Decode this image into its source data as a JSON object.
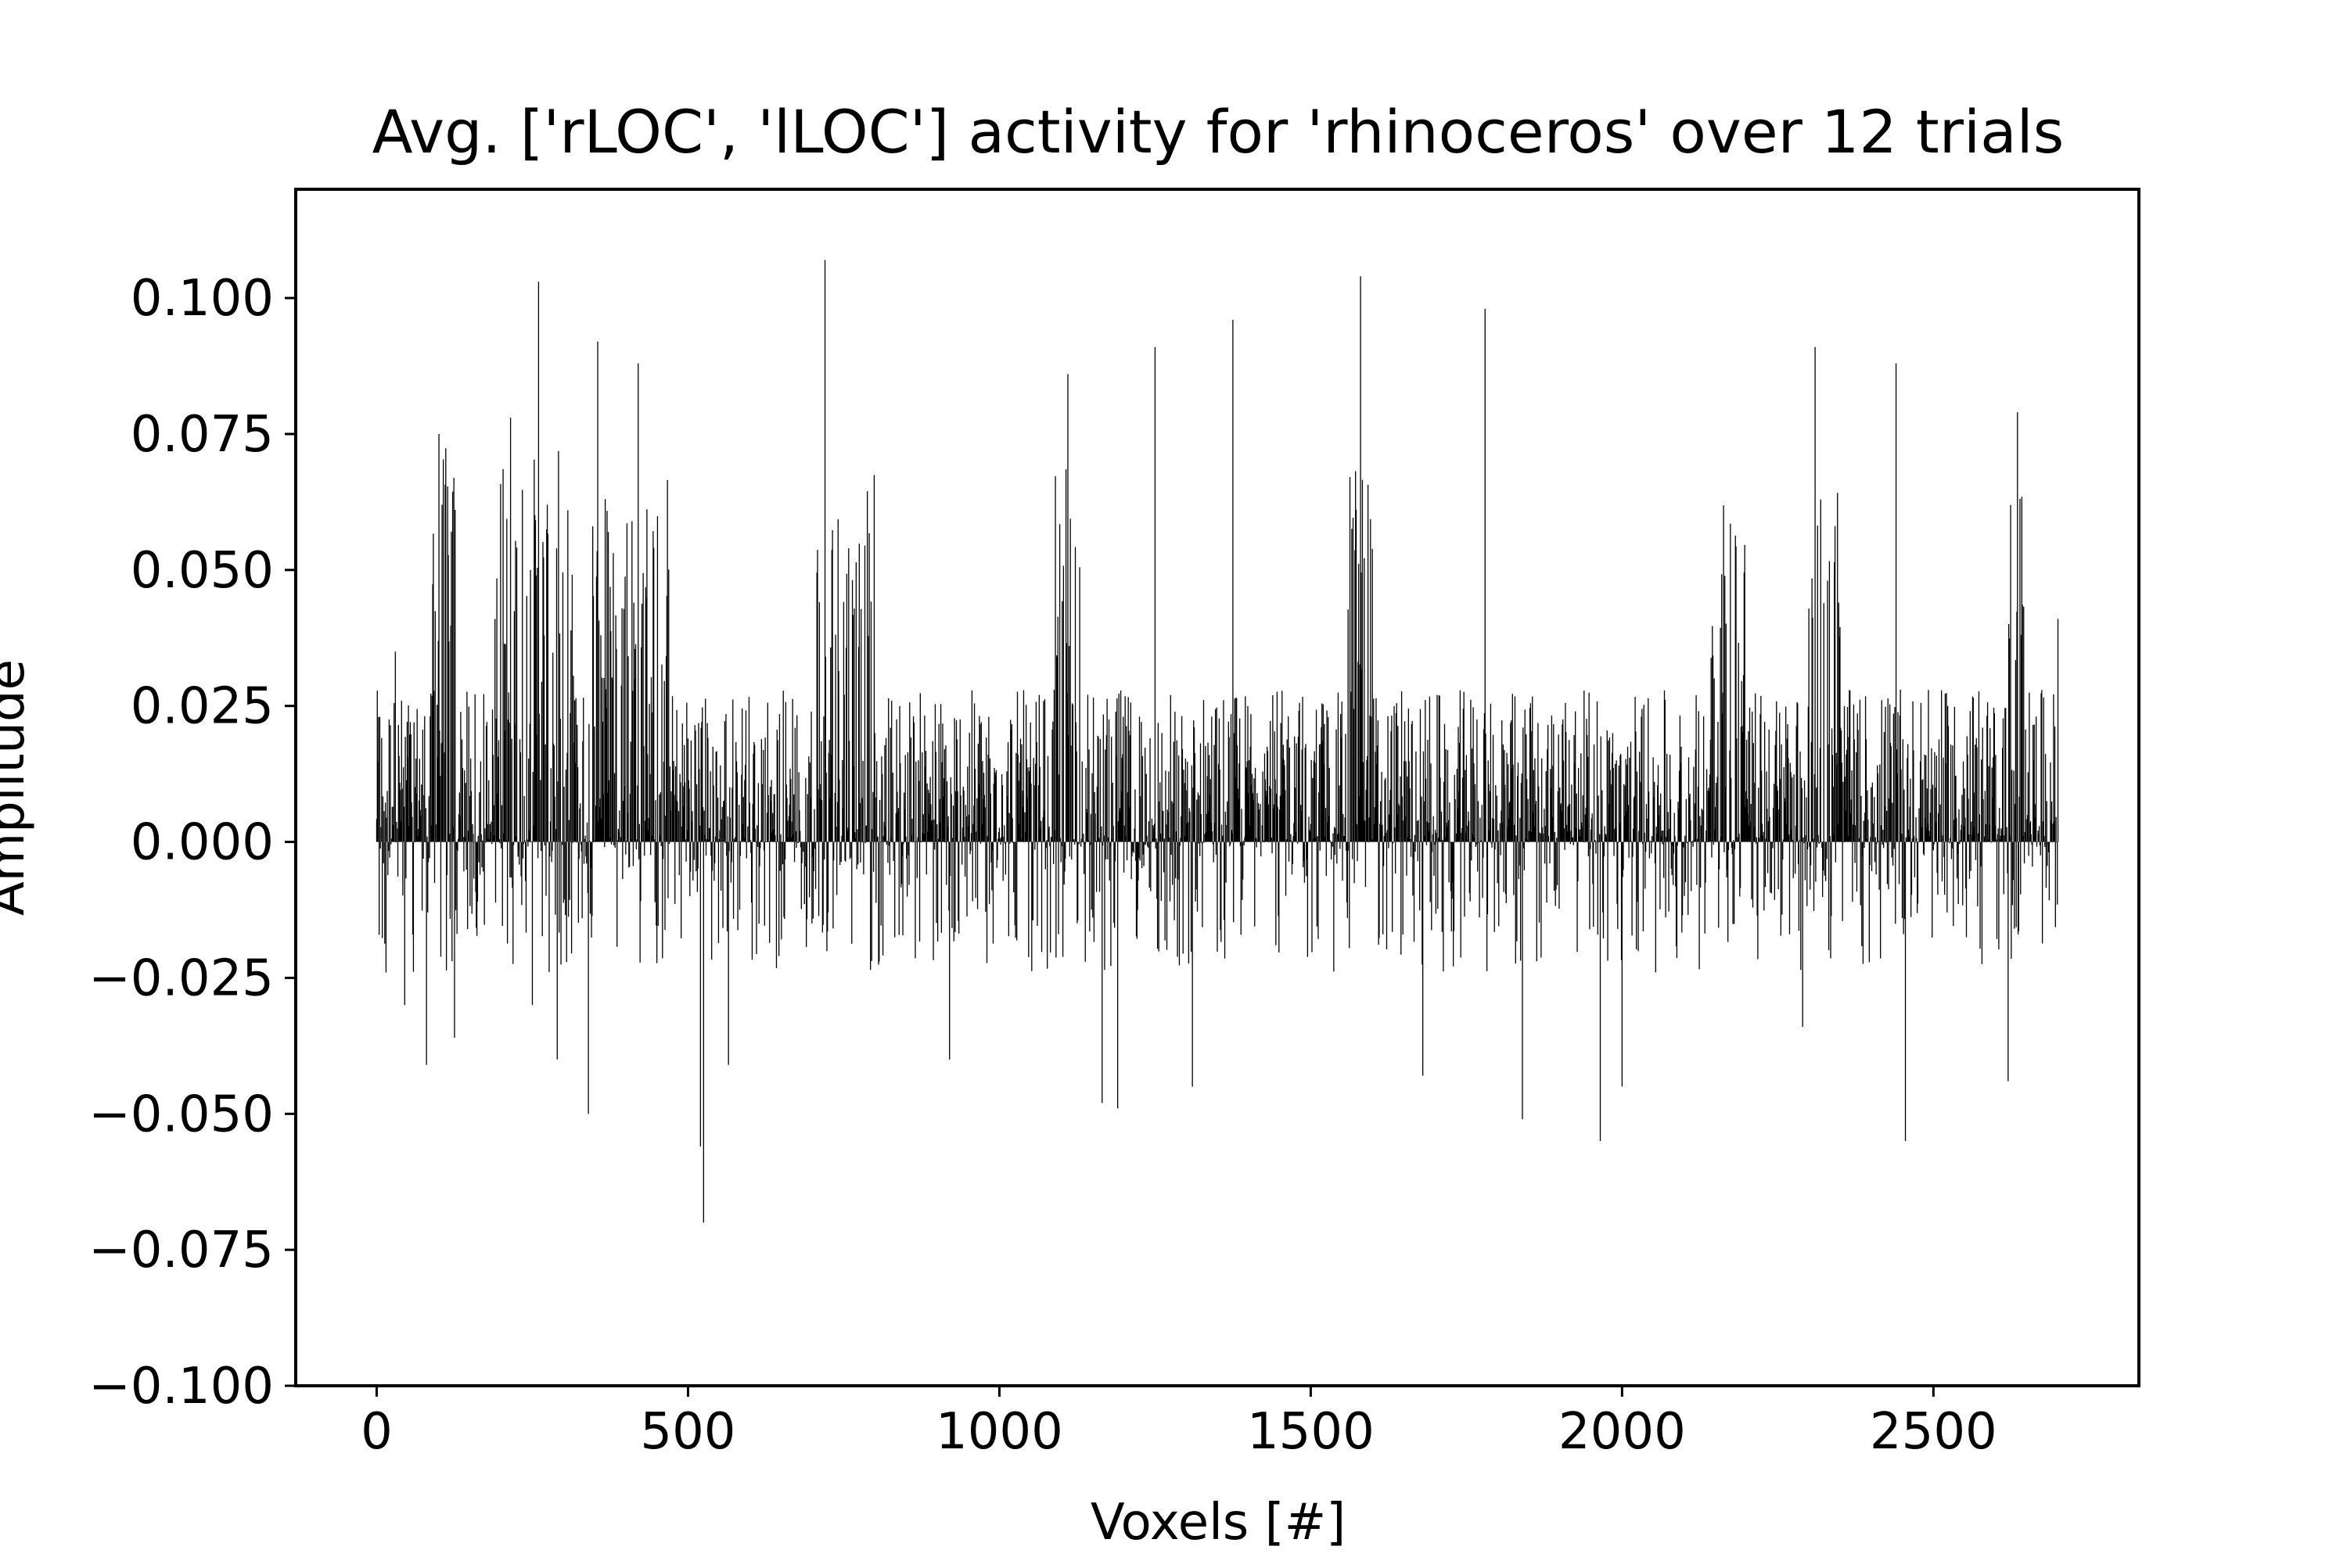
{
  "chart_data": {
    "type": "bar",
    "title": "Avg. ['rLOC', 'lLOC'] activity for 'rhinoceros' over 12 trials",
    "xlabel": "Voxels [#]",
    "ylabel": "Amplitude",
    "xlim": [
      -130,
      2830
    ],
    "ylim": [
      -0.1,
      0.12
    ],
    "x_ticks": [
      0,
      500,
      1000,
      1500,
      2000,
      2500
    ],
    "x_tick_labels": [
      "0",
      "500",
      "1000",
      "1500",
      "2000",
      "2500"
    ],
    "y_ticks": [
      0.1,
      0.075,
      0.05,
      0.025,
      0.0,
      -0.025,
      -0.05,
      -0.075,
      -0.1
    ],
    "y_tick_labels": [
      "0.100",
      "0.075",
      "0.050",
      "0.025",
      "0.000",
      "−0.025",
      "−0.050",
      "−0.075",
      "−0.100"
    ],
    "grid": false,
    "legend": false,
    "bar_color": "#000000",
    "peaks": [
      {
        "x": 5,
        "value": 0.023
      },
      {
        "x": 15,
        "value": -0.024
      },
      {
        "x": 30,
        "value": 0.035
      },
      {
        "x": 45,
        "value": -0.03
      },
      {
        "x": 80,
        "value": -0.041
      },
      {
        "x": 100,
        "value": 0.075
      },
      {
        "x": 105,
        "value": 0.062
      },
      {
        "x": 125,
        "value": -0.036
      },
      {
        "x": 215,
        "value": 0.078
      },
      {
        "x": 250,
        "value": -0.03
      },
      {
        "x": 260,
        "value": 0.103
      },
      {
        "x": 290,
        "value": -0.04
      },
      {
        "x": 340,
        "value": -0.05
      },
      {
        "x": 355,
        "value": 0.092
      },
      {
        "x": 420,
        "value": 0.088
      },
      {
        "x": 525,
        "value": -0.07
      },
      {
        "x": 520,
        "value": -0.056
      },
      {
        "x": 565,
        "value": -0.041
      },
      {
        "x": 720,
        "value": 0.107
      },
      {
        "x": 920,
        "value": -0.04
      },
      {
        "x": 1110,
        "value": 0.086
      },
      {
        "x": 1165,
        "value": -0.048
      },
      {
        "x": 1190,
        "value": -0.049
      },
      {
        "x": 1250,
        "value": 0.091
      },
      {
        "x": 1310,
        "value": -0.045
      },
      {
        "x": 1375,
        "value": 0.096
      },
      {
        "x": 1580,
        "value": 0.104
      },
      {
        "x": 1680,
        "value": -0.043
      },
      {
        "x": 1780,
        "value": 0.098
      },
      {
        "x": 1840,
        "value": -0.051
      },
      {
        "x": 1965,
        "value": -0.055
      },
      {
        "x": 2000,
        "value": -0.045
      },
      {
        "x": 2310,
        "value": 0.091
      },
      {
        "x": 2290,
        "value": -0.034
      },
      {
        "x": 2440,
        "value": 0.088
      },
      {
        "x": 2455,
        "value": -0.055
      },
      {
        "x": 2635,
        "value": 0.079
      },
      {
        "x": 2620,
        "value": -0.044
      },
      {
        "x": 2700,
        "value": 0.041
      }
    ],
    "n_voxels": 2700,
    "generated_envelope": {
      "pos_base": 0.028,
      "neg_base": 0.012,
      "active_regions": [
        {
          "x": [
            90,
            130
          ],
          "pos": 0.05
        },
        {
          "x": [
            190,
            320
          ],
          "pos": 0.045
        },
        {
          "x": [
            340,
            470
          ],
          "pos": 0.042
        },
        {
          "x": [
            700,
            800
          ],
          "pos": 0.04
        },
        {
          "x": [
            1090,
            1130
          ],
          "pos": 0.045
        },
        {
          "x": [
            1560,
            1600
          ],
          "pos": 0.045
        },
        {
          "x": [
            2140,
            2200
          ],
          "pos": 0.04
        },
        {
          "x": [
            2300,
            2350
          ],
          "pos": 0.045
        },
        {
          "x": [
            2620,
            2650
          ],
          "pos": 0.045
        }
      ]
    }
  }
}
